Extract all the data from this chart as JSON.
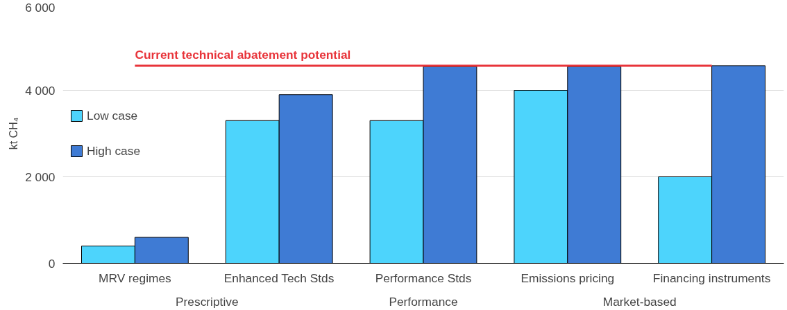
{
  "chart_data": {
    "type": "bar",
    "ylabel": "kt CH₄",
    "categories": [
      "MRV regimes",
      "Enhanced Tech Stds",
      "Performance Stds",
      "Emissions pricing",
      "Financing instruments"
    ],
    "series": [
      {
        "name": "Low case",
        "color": "#4dd4fc",
        "values": [
          400,
          3300,
          3300,
          4000,
          2000
        ]
      },
      {
        "name": "High case",
        "color": "#3f7bd4",
        "values": [
          600,
          3900,
          4550,
          4550,
          4570
        ]
      }
    ],
    "ylim": [
      0,
      6000
    ],
    "yticks": [
      {
        "value": 0,
        "label": "0"
      },
      {
        "value": 2000,
        "label": "2 000"
      },
      {
        "value": 4000,
        "label": "4 000"
      },
      {
        "value": 6000,
        "label": "6 000"
      }
    ],
    "ref_lines": [
      {
        "axis": "y",
        "value": 4570,
        "label": "Current technical abatement potential",
        "color": "#e8343a"
      }
    ],
    "annotations": [
      "Prescriptive",
      "Performance",
      "Market-based"
    ],
    "grid": "y",
    "legend": "left"
  }
}
